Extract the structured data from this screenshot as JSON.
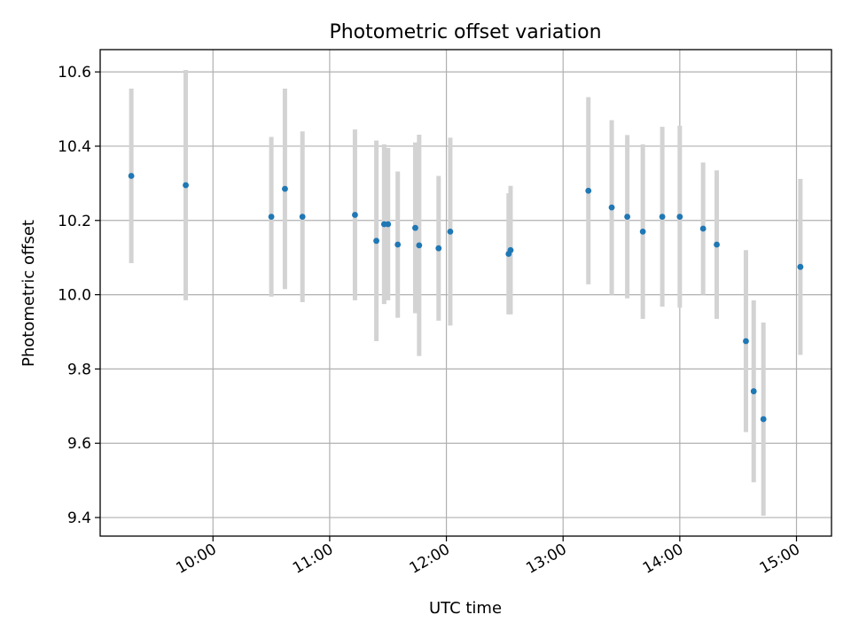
{
  "chart_data": {
    "type": "scatter",
    "title": "Photometric offset variation",
    "xlabel": "UTC time",
    "ylabel": "Photometric offset",
    "x_type": "time",
    "xlim": [
      "09:02",
      "15:18"
    ],
    "ylim": [
      9.35,
      10.66
    ],
    "x_ticks": [
      "10:00",
      "11:00",
      "12:00",
      "13:00",
      "14:00",
      "15:00"
    ],
    "y_ticks": [
      9.4,
      9.6,
      9.8,
      10.0,
      10.2,
      10.4,
      10.6
    ],
    "y_tick_labels": [
      "9.4",
      "9.6",
      "9.8",
      "10.0",
      "10.2",
      "10.4",
      "10.6"
    ],
    "grid": true,
    "colors": {
      "points": "#1f77b4",
      "errorbars": "#d3d3d3"
    },
    "series": [
      {
        "points": [
          {
            "x": "09:18",
            "y": 10.32,
            "err": 0.235
          },
          {
            "x": "09:46",
            "y": 10.295,
            "err": 0.31
          },
          {
            "x": "10:30",
            "y": 10.21,
            "err": 0.215
          },
          {
            "x": "10:37",
            "y": 10.285,
            "err": 0.27
          },
          {
            "x": "10:46",
            "y": 10.21,
            "err": 0.23
          },
          {
            "x": "11:13",
            "y": 10.215,
            "err": 0.23
          },
          {
            "x": "11:24",
            "y": 10.145,
            "err": 0.27
          },
          {
            "x": "11:28",
            "y": 10.19,
            "err": 0.215
          },
          {
            "x": "11:30",
            "y": 10.19,
            "err": 0.205
          },
          {
            "x": "11:35",
            "y": 10.135,
            "err": 0.197
          },
          {
            "x": "11:44",
            "y": 10.18,
            "err": 0.23
          },
          {
            "x": "11:46",
            "y": 10.133,
            "err": 0.298
          },
          {
            "x": "11:56",
            "y": 10.125,
            "err": 0.195
          },
          {
            "x": "12:02",
            "y": 10.17,
            "err": 0.253
          },
          {
            "x": "12:32",
            "y": 10.11,
            "err": 0.163
          },
          {
            "x": "12:33",
            "y": 10.12,
            "err": 0.173
          },
          {
            "x": "13:13",
            "y": 10.28,
            "err": 0.252
          },
          {
            "x": "13:25",
            "y": 10.235,
            "err": 0.235
          },
          {
            "x": "13:33",
            "y": 10.21,
            "err": 0.22
          },
          {
            "x": "13:41",
            "y": 10.17,
            "err": 0.235
          },
          {
            "x": "13:51",
            "y": 10.21,
            "err": 0.242
          },
          {
            "x": "14:00",
            "y": 10.21,
            "err": 0.245
          },
          {
            "x": "14:12",
            "y": 10.178,
            "err": 0.178
          },
          {
            "x": "14:19",
            "y": 10.135,
            "err": 0.2
          },
          {
            "x": "14:34",
            "y": 9.875,
            "err": 0.245
          },
          {
            "x": "14:38",
            "y": 9.74,
            "err": 0.245
          },
          {
            "x": "14:43",
            "y": 9.665,
            "err": 0.26
          },
          {
            "x": "15:02",
            "y": 10.075,
            "err": 0.237
          }
        ]
      }
    ]
  }
}
